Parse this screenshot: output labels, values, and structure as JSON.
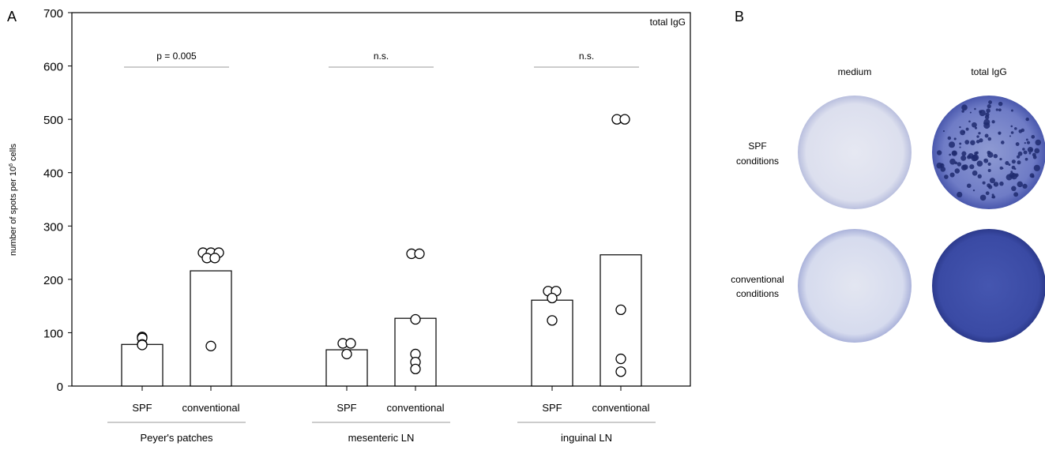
{
  "panels": {
    "a": "A",
    "b": "B"
  },
  "chart_data": {
    "type": "bar",
    "corner_label": "total IgG",
    "ylabel": "number of spots per 10",
    "ylabel_sup": "6",
    "ylabel_tail": " cells",
    "ylim": [
      0,
      700
    ],
    "yticks": [
      0,
      100,
      200,
      300,
      400,
      500,
      600,
      700
    ],
    "groups": [
      {
        "name": "Peyer's patches",
        "significance": "p = 0.005",
        "bars": [
          {
            "label": "SPF",
            "value": 78,
            "points": [
              92,
              90,
              78,
              77
            ]
          },
          {
            "label": "conventional",
            "value": 216,
            "points": [
              250,
              250,
              250,
              240,
              240,
              75
            ]
          }
        ]
      },
      {
        "name": "mesenteric LN",
        "significance": "n.s.",
        "bars": [
          {
            "label": "SPF",
            "value": 68,
            "points": [
              80,
              80,
              60
            ]
          },
          {
            "label": "conventional",
            "value": 127,
            "points": [
              248,
              248,
              125,
              60,
              45,
              32
            ]
          }
        ]
      },
      {
        "name": "inguinal LN",
        "significance": "n.s.",
        "bars": [
          {
            "label": "SPF",
            "value": 161,
            "points": [
              178,
              178,
              165,
              123
            ]
          },
          {
            "label": "conventional",
            "value": 246,
            "points": [
              500,
              500,
              143,
              51,
              27
            ]
          }
        ]
      }
    ]
  },
  "images_panel": {
    "columns": [
      "medium",
      "total IgG"
    ],
    "rows": [
      {
        "label_line1": "SPF",
        "label_line2": "conditions"
      },
      {
        "label_line1": "conventional",
        "label_line2": "conditions"
      }
    ],
    "well_color": "#3d4ea6",
    "background_color": "#d9dceb"
  }
}
